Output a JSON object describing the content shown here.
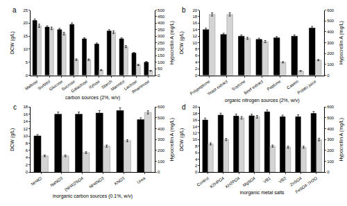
{
  "chart_data": [
    {
      "type": "bar",
      "title": "a",
      "x_label": "carbon sources (2%, w/v)",
      "y_label": "DCW (g/L)",
      "y2_label": "Hypocrellin A (mg/L)",
      "categories": [
        "Maltose",
        "Sorbitol",
        "Glucose",
        "Sucrose",
        "Galactose",
        "Xylose",
        "Starch",
        "Mannitol",
        "Lactose",
        "Rhamnose"
      ],
      "ylim": [
        0,
        25
      ],
      "yticks": [
        0,
        5,
        10,
        15,
        20,
        25
      ],
      "y2lim": [
        0,
        500
      ],
      "y2ticks": [
        0,
        50,
        100,
        150,
        200,
        250,
        300,
        350,
        400,
        450,
        500
      ],
      "series": [
        {
          "color": "#000000",
          "values": [
            21,
            18.5,
            17.5,
            19.5,
            14,
            12,
            17,
            14,
            8.5,
            5
          ],
          "errors": [
            0.6,
            0.5,
            0.5,
            0.6,
            0.4,
            0.4,
            0.5,
            0.4,
            0.3,
            0.3
          ]
        },
        {
          "color": "#d4d4d4",
          "axis": "y2",
          "values": [
            380,
            360,
            320,
            120,
            120,
            40,
            330,
            220,
            80,
            35
          ],
          "errors": [
            12,
            10,
            10,
            6,
            6,
            4,
            10,
            8,
            5,
            3
          ]
        }
      ]
    },
    {
      "type": "bar",
      "title": "b",
      "x_label": "organic nitrogen sources (2%, w/v)",
      "y_label": "DCW (g/L)",
      "y2_label": "Hypocrellin A (mg/L)",
      "categories": [
        "Polypeptone",
        "Yeast extract",
        "Soytone",
        "Beef extract",
        "Peptone",
        "Casein",
        "Potato juice"
      ],
      "ylim": [
        0,
        20
      ],
      "yticks": [
        0,
        2,
        4,
        6,
        8,
        10,
        12,
        14,
        16,
        18,
        20
      ],
      "y2lim": [
        0,
        600
      ],
      "y2ticks": [
        0,
        100,
        200,
        300,
        400,
        500,
        600
      ],
      "series": [
        {
          "color": "#000000",
          "values": [
            14,
            12.5,
            12,
            11,
            11.5,
            12,
            14.5
          ],
          "errors": [
            0.5,
            0.4,
            0.4,
            0.4,
            0.4,
            0.4,
            0.5
          ]
        },
        {
          "color": "#d4d4d4",
          "axis": "y2",
          "values": [
            560,
            560,
            340,
            310,
            120,
            40,
            140
          ],
          "errors": [
            15,
            15,
            10,
            10,
            6,
            4,
            6
          ]
        }
      ]
    },
    {
      "type": "bar",
      "title": "c",
      "x_label": "inorganic carbon sources (0.1%, w/v)",
      "y_label": "DCW (g/L)",
      "y2_label": "Hypocrellin A (mg/L)",
      "categories": [
        "NH4Cl",
        "NaNO3",
        "(NH4)2SO4",
        "NH4NO3",
        "KNO3",
        "Urea"
      ],
      "ylim": [
        0,
        18
      ],
      "yticks": [
        0,
        2,
        4,
        6,
        8,
        10,
        12,
        14,
        16,
        18
      ],
      "y2lim": [
        0,
        600
      ],
      "y2ticks": [
        0,
        100,
        200,
        300,
        400,
        500,
        600
      ],
      "series": [
        {
          "color": "#000000",
          "values": [
            10,
            16,
            16,
            16.3,
            17,
            14.5
          ],
          "errors": [
            0.4,
            0.6,
            0.6,
            0.7,
            0.8,
            0.5
          ]
        },
        {
          "color": "#d4d4d4",
          "axis": "y2",
          "values": [
            150,
            150,
            180,
            240,
            290,
            550
          ],
          "errors": [
            8,
            8,
            8,
            10,
            10,
            15
          ]
        }
      ]
    },
    {
      "type": "bar",
      "title": "d",
      "x_label": "inorganic metal salts",
      "y_label": "DCW (g/L)",
      "y2_label": "Hypocrellin A (mg/L)",
      "categories": [
        "Control",
        "K2HPO4",
        "KH2PO4",
        "MgSO4",
        "VB1",
        "VB2",
        "ZnSO4",
        "FeSO4·7H2O"
      ],
      "ylim": [
        0,
        20
      ],
      "yticks": [
        0,
        2,
        4,
        6,
        8,
        10,
        12,
        14,
        16,
        18,
        20
      ],
      "y2lim": [
        0,
        600
      ],
      "y2ticks": [
        0,
        100,
        200,
        300,
        400,
        500,
        600
      ],
      "series": [
        {
          "color": "#000000",
          "values": [
            16,
            17.5,
            17.2,
            17.3,
            18.5,
            17,
            17,
            18
          ],
          "errors": [
            0.6,
            0.6,
            0.6,
            0.5,
            0.6,
            0.5,
            0.6,
            0.6
          ]
        },
        {
          "color": "#d4d4d4",
          "axis": "y2",
          "values": [
            260,
            300,
            500,
            510,
            240,
            230,
            230,
            300
          ],
          "errors": [
            10,
            10,
            12,
            12,
            10,
            10,
            10,
            12
          ]
        }
      ]
    }
  ]
}
